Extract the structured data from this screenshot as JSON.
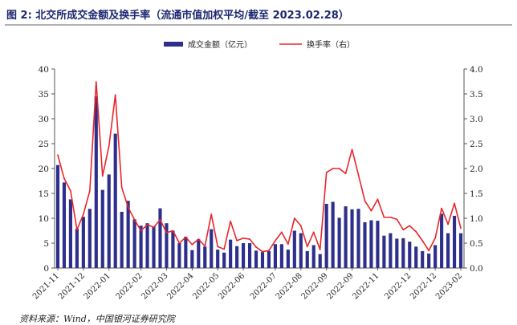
{
  "title": "图 2:  北交所成交金额及换手率（流通市值加权平均/截至 2023.02.28）",
  "source": "资料来源：Wind，中国银河证券研究院",
  "colors": {
    "bar": "#2e2e8c",
    "line": "#e8262b",
    "title": "#1c2770"
  },
  "chart_data": {
    "type": "bar",
    "title": "",
    "xlabel": "",
    "ylabel": "",
    "y2label": "",
    "ylim": [
      0,
      40
    ],
    "y2lim": [
      0,
      4.0
    ],
    "yticks": [
      "0",
      "5",
      "10",
      "15",
      "20",
      "25",
      "30",
      "35",
      "40"
    ],
    "y2ticks": [
      "0.0",
      "0.5",
      "1.0",
      "1.5",
      "2.0",
      "2.5",
      "3.0",
      "3.5",
      "4.0"
    ],
    "legend_position": "top-center",
    "xticklabels": [
      "2021-11",
      "2021-12",
      "2022-01",
      "2022-02",
      "2022-03",
      "2022-04",
      "2022-05",
      "2022-06",
      "2022-07",
      "2022-08",
      "2022-09",
      "2022-09",
      "2022-11",
      "2022-12",
      "2022-12",
      "2023-02"
    ],
    "series": [
      {
        "name": "成交金额（亿元）",
        "type": "bar",
        "axis": "left",
        "values": [
          20.7,
          17.2,
          13.8,
          7.9,
          10.3,
          11.9,
          34.5,
          15.7,
          18.8,
          27.0,
          11.3,
          13.5,
          9.8,
          8.5,
          9.0,
          8.4,
          12.0,
          9.0,
          7.5,
          5.0,
          6.3,
          3.6,
          5.8,
          4.3,
          7.8,
          3.7,
          3.1,
          5.7,
          4.4,
          5.0,
          5.0,
          3.5,
          3.2,
          3.4,
          4.8,
          4.8,
          3.7,
          7.5,
          7.0,
          3.4,
          4.6,
          2.8,
          12.9,
          13.3,
          10.1,
          12.4,
          11.8,
          11.9,
          9.2,
          9.6,
          9.5,
          6.5,
          7.0,
          5.9,
          6.0,
          5.3,
          4.3,
          3.4,
          2.9,
          4.6,
          10.9,
          7.0,
          10.5,
          7.0
        ]
      },
      {
        "name": "换手率（右）",
        "type": "line",
        "axis": "right",
        "values": [
          2.27,
          1.8,
          1.55,
          0.77,
          1.08,
          1.55,
          3.74,
          1.85,
          2.45,
          3.48,
          1.62,
          1.22,
          0.97,
          0.75,
          0.87,
          0.82,
          0.97,
          0.71,
          0.75,
          0.5,
          0.62,
          0.47,
          0.58,
          0.44,
          1.08,
          0.43,
          0.38,
          0.94,
          0.55,
          0.6,
          0.58,
          0.42,
          0.33,
          0.35,
          0.55,
          0.72,
          0.48,
          1.0,
          0.85,
          0.43,
          0.72,
          0.37,
          1.92,
          2.0,
          2.0,
          1.9,
          2.38,
          1.87,
          1.35,
          1.15,
          1.38,
          1.02,
          1.02,
          0.98,
          0.77,
          0.85,
          0.73,
          0.55,
          0.35,
          0.6,
          1.2,
          0.88,
          1.3,
          0.8
        ]
      }
    ]
  }
}
